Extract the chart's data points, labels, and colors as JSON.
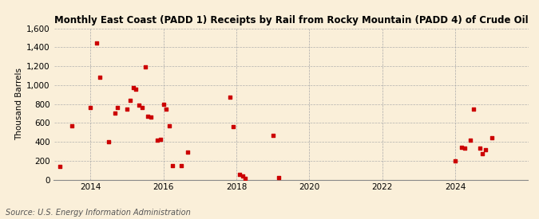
{
  "title": "Monthly East Coast (PADD 1) Receipts by Rail from Rocky Mountain (PADD 4) of Crude Oil",
  "ylabel": "Thousand Barrels",
  "source": "Source: U.S. Energy Information Administration",
  "background_color": "#faefd9",
  "dot_color": "#cc0000",
  "xlim": [
    2013.0,
    2026.0
  ],
  "ylim": [
    0,
    1600
  ],
  "yticks": [
    0,
    200,
    400,
    600,
    800,
    1000,
    1200,
    1400,
    1600
  ],
  "xticks": [
    2014,
    2016,
    2018,
    2020,
    2022,
    2024
  ],
  "data_x": [
    2013.17,
    2013.5,
    2014.0,
    2014.17,
    2014.25,
    2014.5,
    2014.67,
    2014.75,
    2015.0,
    2015.08,
    2015.17,
    2015.25,
    2015.33,
    2015.42,
    2015.5,
    2015.58,
    2015.67,
    2015.83,
    2015.92,
    2016.0,
    2016.08,
    2016.17,
    2016.25,
    2016.5,
    2016.67,
    2017.83,
    2017.92,
    2018.08,
    2018.17,
    2018.25,
    2019.0,
    2019.17,
    2024.0,
    2024.17,
    2024.25,
    2024.42,
    2024.5,
    2024.67,
    2024.75,
    2024.83,
    2025.0
  ],
  "data_y": [
    140,
    570,
    760,
    1450,
    1080,
    400,
    700,
    760,
    750,
    840,
    970,
    960,
    790,
    760,
    1190,
    670,
    660,
    420,
    430,
    800,
    750,
    565,
    150,
    145,
    295,
    870,
    560,
    55,
    35,
    10,
    465,
    20,
    195,
    345,
    330,
    420,
    750,
    335,
    270,
    320,
    440
  ]
}
